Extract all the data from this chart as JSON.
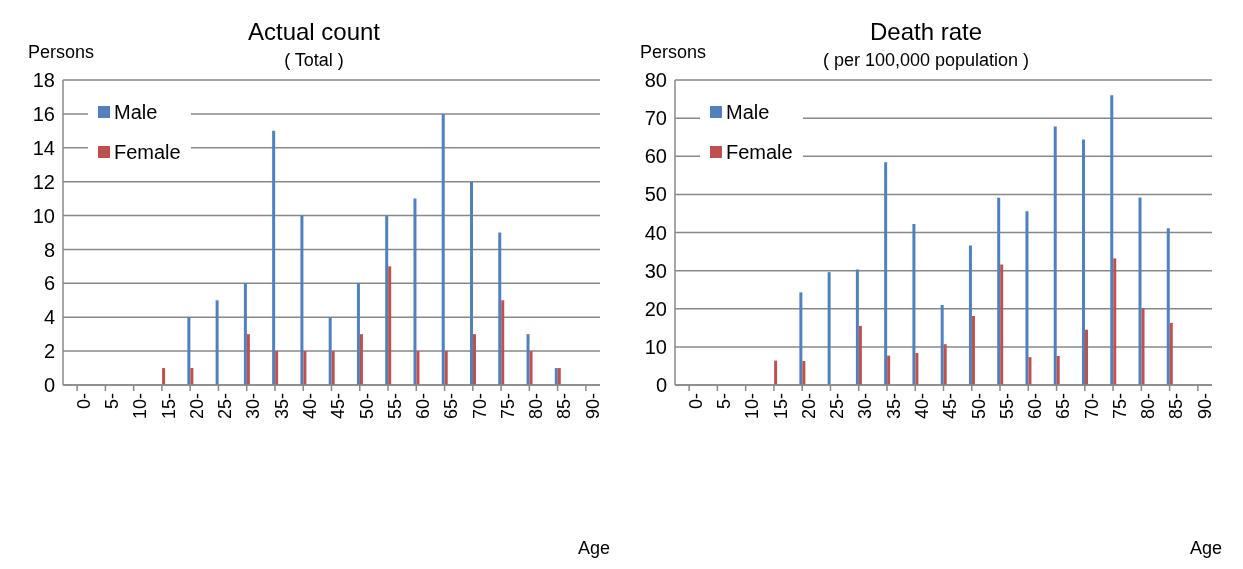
{
  "chart_data": [
    {
      "type": "bar",
      "title": "Actual count",
      "subtitle": "( Total )",
      "ylabel": "Persons",
      "xlabel": "Age",
      "categories": [
        "0-",
        "5-",
        "10-",
        "15-",
        "20-",
        "25-",
        "30-",
        "35-",
        "40-",
        "45-",
        "50-",
        "55-",
        "60-",
        "65-",
        "70-",
        "75-",
        "80-",
        "85-",
        "90-"
      ],
      "series": [
        {
          "name": "Male",
          "color": "#4f81bd",
          "values": [
            0,
            0,
            0,
            0,
            4,
            5,
            6,
            15,
            10,
            4,
            6,
            10,
            11,
            16,
            12,
            9,
            3,
            1,
            0
          ]
        },
        {
          "name": "Female",
          "color": "#c0504d",
          "values": [
            0,
            0,
            0,
            1,
            1,
            0,
            3,
            2,
            2,
            2,
            3,
            7,
            2,
            2,
            3,
            5,
            2,
            1,
            0
          ]
        }
      ],
      "ylim": [
        0,
        18
      ],
      "yticks": [
        0,
        2,
        4,
        6,
        8,
        10,
        12,
        14,
        16,
        18
      ],
      "grid": "y",
      "legend": "top left"
    },
    {
      "type": "bar",
      "title": "Death rate",
      "subtitle": "( per 100,000 population )",
      "ylabel": "Persons",
      "xlabel": "Age",
      "categories": [
        "0-",
        "5-",
        "10-",
        "15-",
        "20-",
        "25-",
        "30-",
        "35-",
        "40-",
        "45-",
        "50-",
        "55-",
        "60-",
        "65-",
        "70-",
        "75-",
        "80-",
        "85-",
        "90-"
      ],
      "series": [
        {
          "name": "Male",
          "color": "#4f81bd",
          "values": [
            0,
            0,
            0,
            0,
            24.3,
            29.6,
            30.3,
            58.4,
            42.2,
            21,
            36.6,
            49.1,
            45.6,
            67.8,
            64.4,
            76,
            49.2,
            41.1,
            0
          ]
        },
        {
          "name": "Female",
          "color": "#c0504d",
          "values": [
            0,
            0,
            0,
            6.4,
            6.3,
            0,
            15.5,
            7.7,
            8.4,
            10.7,
            18.1,
            31.6,
            7.3,
            7.6,
            14.5,
            33.2,
            20,
            16.3,
            0
          ]
        }
      ],
      "ylim": [
        0,
        80
      ],
      "yticks": [
        0,
        10,
        20,
        30,
        40,
        50,
        60,
        70,
        80
      ],
      "grid": "y",
      "legend": "top left"
    }
  ]
}
